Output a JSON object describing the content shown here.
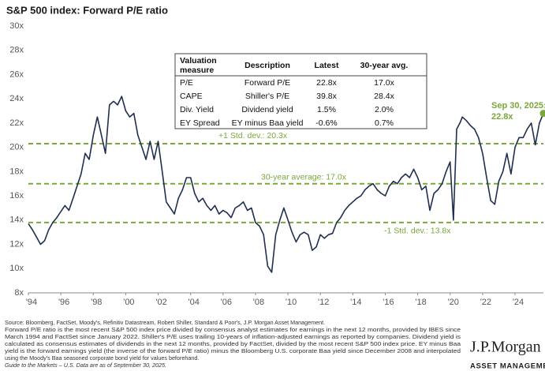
{
  "chart_data": {
    "type": "line",
    "title": "S&P 500 index: Forward P/E ratio",
    "x": [
      1994.0,
      1994.25,
      1994.5,
      1994.75,
      1995.0,
      1995.25,
      1995.5,
      1995.75,
      1996.0,
      1996.25,
      1996.5,
      1996.75,
      1997.0,
      1997.25,
      1997.5,
      1997.75,
      1998.0,
      1998.25,
      1998.5,
      1998.75,
      1999.0,
      1999.25,
      1999.5,
      1999.75,
      2000.0,
      2000.25,
      2000.5,
      2000.75,
      2001.0,
      2001.25,
      2001.5,
      2001.75,
      2002.0,
      2002.25,
      2002.5,
      2002.75,
      2003.0,
      2003.25,
      2003.5,
      2003.75,
      2004.0,
      2004.25,
      2004.5,
      2004.75,
      2005.0,
      2005.25,
      2005.5,
      2005.75,
      2006.0,
      2006.25,
      2006.5,
      2006.75,
      2007.0,
      2007.25,
      2007.5,
      2007.75,
      2008.0,
      2008.25,
      2008.5,
      2008.75,
      2009.0,
      2009.25,
      2009.5,
      2009.75,
      2010.0,
      2010.25,
      2010.5,
      2010.75,
      2011.0,
      2011.25,
      2011.5,
      2011.75,
      2012.0,
      2012.25,
      2012.5,
      2012.75,
      2013.0,
      2013.25,
      2013.5,
      2013.75,
      2014.0,
      2014.25,
      2014.5,
      2014.75,
      2015.0,
      2015.25,
      2015.5,
      2015.75,
      2016.0,
      2016.25,
      2016.5,
      2016.75,
      2017.0,
      2017.25,
      2017.5,
      2017.75,
      2018.0,
      2018.25,
      2018.5,
      2018.75,
      2019.0,
      2019.25,
      2019.5,
      2019.75,
      2020.0,
      2020.2,
      2020.4,
      2020.6,
      2020.75,
      2021.0,
      2021.25,
      2021.5,
      2021.75,
      2022.0,
      2022.25,
      2022.5,
      2022.75,
      2023.0,
      2023.25,
      2023.5,
      2023.75,
      2024.0,
      2024.25,
      2024.5,
      2024.75,
      2025.0,
      2025.25,
      2025.5,
      2025.75
    ],
    "series": [
      {
        "name": "Forward P/E",
        "color": "#1f2f4f",
        "values": [
          13.7,
          13.2,
          12.6,
          12.0,
          12.3,
          13.2,
          13.8,
          14.2,
          14.7,
          15.2,
          14.8,
          15.8,
          16.8,
          17.8,
          19.5,
          19.0,
          21.0,
          22.5,
          21.0,
          19.5,
          23.5,
          23.8,
          23.5,
          24.2,
          23.0,
          22.5,
          22.8,
          21.0,
          20.0,
          19.0,
          20.5,
          19.0,
          20.5,
          18.0,
          15.5,
          15.0,
          14.5,
          15.8,
          16.5,
          17.5,
          17.5,
          16.2,
          15.5,
          15.8,
          15.2,
          14.8,
          15.2,
          14.5,
          14.8,
          14.6,
          14.2,
          15.0,
          15.2,
          15.5,
          14.8,
          15.0,
          13.8,
          13.5,
          12.8,
          10.2,
          9.7,
          12.8,
          14.0,
          15.0,
          14.0,
          13.0,
          12.2,
          12.8,
          13.0,
          12.8,
          11.5,
          11.8,
          12.8,
          12.5,
          12.8,
          12.9,
          13.8,
          14.2,
          14.8,
          15.2,
          15.5,
          15.8,
          16.0,
          16.5,
          16.8,
          17.0,
          16.5,
          16.2,
          16.0,
          16.8,
          17.2,
          17.0,
          17.5,
          17.8,
          17.5,
          18.2,
          17.5,
          16.5,
          16.8,
          14.8,
          16.2,
          16.5,
          17.0,
          18.0,
          18.8,
          14.0,
          21.5,
          22.0,
          22.5,
          22.2,
          21.8,
          21.5,
          20.8,
          19.5,
          17.5,
          15.6,
          15.3,
          17.2,
          18.0,
          19.5,
          17.8,
          20.0,
          20.8,
          20.8,
          21.5,
          22.0,
          20.2,
          22.0,
          22.8
        ]
      }
    ],
    "xlim": [
      1994,
      2025.75
    ],
    "xticks": [
      {
        "value": 1994,
        "label": "'94"
      },
      {
        "value": 1996,
        "label": "'96"
      },
      {
        "value": 1998,
        "label": "'98"
      },
      {
        "value": 2000,
        "label": "'00"
      },
      {
        "value": 2002,
        "label": "'02"
      },
      {
        "value": 2004,
        "label": "'04"
      },
      {
        "value": 2006,
        "label": "'06"
      },
      {
        "value": 2008,
        "label": "'08"
      },
      {
        "value": 2010,
        "label": "'10"
      },
      {
        "value": 2012,
        "label": "'12"
      },
      {
        "value": 2014,
        "label": "'14"
      },
      {
        "value": 2016,
        "label": "'16"
      },
      {
        "value": 2018,
        "label": "'18"
      },
      {
        "value": 2020,
        "label": "'20"
      },
      {
        "value": 2022,
        "label": "'22"
      },
      {
        "value": 2024,
        "label": "'24"
      }
    ],
    "ylim": [
      8,
      30
    ],
    "yticks": [
      {
        "value": 8,
        "label": "8x"
      },
      {
        "value": 10,
        "label": "10x"
      },
      {
        "value": 12,
        "label": "12x"
      },
      {
        "value": 14,
        "label": "14x"
      },
      {
        "value": 16,
        "label": "16x"
      },
      {
        "value": 18,
        "label": "18x"
      },
      {
        "value": 20,
        "label": "20x"
      },
      {
        "value": 22,
        "label": "22x"
      },
      {
        "value": 24,
        "label": "24x"
      },
      {
        "value": 26,
        "label": "26x"
      },
      {
        "value": 28,
        "label": "28x"
      },
      {
        "value": 30,
        "label": "30x"
      }
    ],
    "grid": false,
    "reference_lines": [
      {
        "value": 20.3,
        "label": "+1 Std. dev.: 20.3x",
        "color": "#7aa83a"
      },
      {
        "value": 17.0,
        "label": "30-year average: 17.0x",
        "color": "#7aa83a"
      },
      {
        "value": 13.8,
        "label": "-1 Std. dev.: 13.8x",
        "color": "#7aa83a"
      }
    ],
    "annotation": {
      "x": 2025.75,
      "y": 22.8,
      "label": [
        "Sep 30, 2025:",
        "22.8x"
      ],
      "color": "#7aa83a"
    }
  },
  "table": {
    "header": [
      "Valuation measure",
      "Description",
      "Latest",
      "30-year avg."
    ],
    "rows": [
      [
        "P/E",
        "Forward P/E",
        "22.8x",
        "17.0x"
      ],
      [
        "CAPE",
        "Shiller's P/E",
        "39.8x",
        "28.4x"
      ],
      [
        "Div. Yield",
        "Dividend yield",
        "1.5%",
        "2.0%"
      ],
      [
        "EY Spread",
        "EY minus Baa yield",
        "-0.6%",
        "0.7%"
      ]
    ]
  },
  "footnotes": [
    "Source: Bloomberg, FactSet, Moody's, Refinitiv Datastream, Robert Shiller, Standard & Poor's, J.P. Morgan Asset Management.",
    "Forward P/E ratio is the most recent S&P 500 index price divided by consensus analyst estimates for earnings in the next 12 months, provided by IBES since",
    "March 1994 and FactSet since January 2022. Shiller's P/E uses trailing 10-years of inflation-adjusted earnings as reported by companies. Dividend yield is",
    "calculated as consensus estimates of dividends in the next 12 months, provided by FactSet, divided by the most recent S&P 500 index price. EY minus Baa",
    "yield is the forward earnings yield (the inverse of the forward P/E ratio) minus the Bloomberg U.S. corporate Baa yield since December 2008 and interpolated",
    "using the Moody's Baa seasoned corporate bond yield for values beforehand.",
    "Guide to the Markets – U.S. Data are as of September 30, 2025."
  ],
  "logo": {
    "name": "J.P.Morgan",
    "subtitle": "ASSET MANAGEMENT"
  }
}
